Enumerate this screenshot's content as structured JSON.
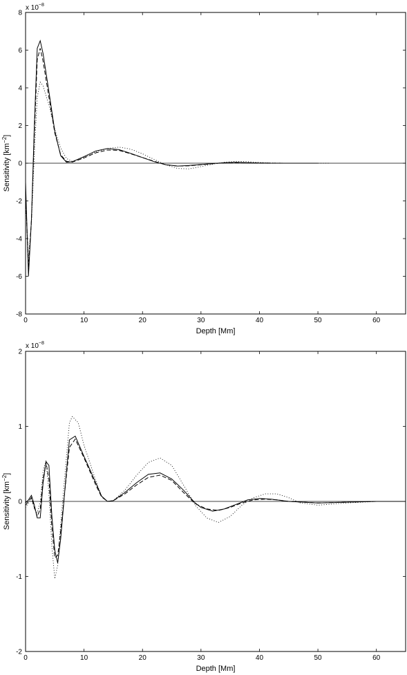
{
  "chart_data": [
    {
      "type": "line",
      "xlabel": "Depth [Mm]",
      "ylabel": "Sensitivity [km",
      "ylabel_sup": "−2",
      "ylabel_end": "]",
      "scale_base": "x 10",
      "scale_exp": "−8",
      "xlim": [
        0,
        65
      ],
      "ylim": [
        -8,
        8
      ],
      "xticks": [
        0,
        10,
        20,
        30,
        40,
        50,
        60
      ],
      "yticks": [
        -8,
        -6,
        -4,
        -2,
        0,
        2,
        4,
        6,
        8
      ],
      "zero_line": true,
      "grid": false,
      "series": [
        {
          "style": "solid",
          "points": [
            [
              0,
              -1
            ],
            [
              0.5,
              -6
            ],
            [
              1,
              -3
            ],
            [
              1.5,
              2
            ],
            [
              2,
              6.1
            ],
            [
              2.5,
              6.5
            ],
            [
              3,
              5.8
            ],
            [
              4,
              3.8
            ],
            [
              5,
              1.7
            ],
            [
              6,
              0.4
            ],
            [
              7,
              0.05
            ],
            [
              8,
              0.08
            ],
            [
              10,
              0.35
            ],
            [
              12,
              0.65
            ],
            [
              14,
              0.78
            ],
            [
              16,
              0.72
            ],
            [
              18,
              0.52
            ],
            [
              20,
              0.3
            ],
            [
              22,
              0.08
            ],
            [
              24,
              -0.08
            ],
            [
              26,
              -0.15
            ],
            [
              28,
              -0.12
            ],
            [
              30,
              -0.07
            ],
            [
              32,
              -0.02
            ],
            [
              34,
              0.03
            ],
            [
              36,
              0.05
            ],
            [
              38,
              0.03
            ],
            [
              40,
              0.01
            ],
            [
              42,
              0
            ],
            [
              45,
              0
            ],
            [
              50,
              0
            ]
          ]
        },
        {
          "style": "dashed",
          "points": [
            [
              0,
              -1.5
            ],
            [
              0.5,
              -5.5
            ],
            [
              1,
              -3
            ],
            [
              1.5,
              1.5
            ],
            [
              2,
              5.5
            ],
            [
              2.5,
              6.1
            ],
            [
              3,
              5.4
            ],
            [
              4,
              3.5
            ],
            [
              5,
              1.6
            ],
            [
              6,
              0.45
            ],
            [
              7,
              0.1
            ],
            [
              8,
              0.06
            ],
            [
              10,
              0.28
            ],
            [
              12,
              0.55
            ],
            [
              14,
              0.7
            ],
            [
              16,
              0.68
            ],
            [
              18,
              0.5
            ],
            [
              20,
              0.3
            ],
            [
              22,
              0.1
            ],
            [
              24,
              -0.08
            ],
            [
              26,
              -0.15
            ],
            [
              28,
              -0.14
            ],
            [
              30,
              -0.08
            ],
            [
              32,
              -0.03
            ],
            [
              34,
              0.02
            ],
            [
              36,
              0.04
            ],
            [
              38,
              0.03
            ],
            [
              40,
              0.01
            ],
            [
              45,
              0
            ],
            [
              50,
              0
            ]
          ]
        },
        {
          "style": "dotted",
          "points": [
            [
              0,
              -2
            ],
            [
              0.5,
              -5
            ],
            [
              1,
              -3.2
            ],
            [
              1.5,
              0.5
            ],
            [
              2,
              3.5
            ],
            [
              2.5,
              4.3
            ],
            [
              3,
              4.1
            ],
            [
              4,
              3.1
            ],
            [
              5,
              1.8
            ],
            [
              6,
              0.8
            ],
            [
              7,
              0.25
            ],
            [
              8,
              0.1
            ],
            [
              10,
              0.3
            ],
            [
              12,
              0.6
            ],
            [
              14,
              0.78
            ],
            [
              16,
              0.85
            ],
            [
              18,
              0.75
            ],
            [
              20,
              0.5
            ],
            [
              22,
              0.2
            ],
            [
              24,
              -0.08
            ],
            [
              26,
              -0.28
            ],
            [
              28,
              -0.3
            ],
            [
              30,
              -0.18
            ],
            [
              32,
              -0.05
            ],
            [
              34,
              0.05
            ],
            [
              36,
              0.1
            ],
            [
              38,
              0.08
            ],
            [
              40,
              0.04
            ],
            [
              42,
              0.01
            ],
            [
              45,
              0
            ],
            [
              52,
              0
            ]
          ]
        }
      ]
    },
    {
      "type": "line",
      "xlabel": "Depth [Mm]",
      "ylabel": "Sensitivity [km",
      "ylabel_sup": "−2",
      "ylabel_end": "]",
      "scale_base": "x 10",
      "scale_exp": "−8",
      "xlim": [
        0,
        65
      ],
      "ylim": [
        -2,
        2
      ],
      "xticks": [
        0,
        10,
        20,
        30,
        40,
        50,
        60
      ],
      "yticks": [
        -2,
        -1,
        0,
        1,
        2
      ],
      "zero_line": true,
      "grid": false,
      "series": [
        {
          "style": "solid",
          "points": [
            [
              0,
              -0.02
            ],
            [
              0.5,
              0.02
            ],
            [
              1,
              0.08
            ],
            [
              1.5,
              -0.05
            ],
            [
              2,
              -0.22
            ],
            [
              2.5,
              -0.22
            ],
            [
              3,
              0.25
            ],
            [
              3.5,
              0.53
            ],
            [
              4,
              0.48
            ],
            [
              4.5,
              -0.2
            ],
            [
              5,
              -0.65
            ],
            [
              5.5,
              -0.82
            ],
            [
              6,
              -0.5
            ],
            [
              7,
              0.4
            ],
            [
              7.5,
              0.82
            ],
            [
              8.5,
              0.87
            ],
            [
              10,
              0.6
            ],
            [
              12,
              0.25
            ],
            [
              13,
              0.07
            ],
            [
              14,
              0
            ],
            [
              15,
              0.01
            ],
            [
              17,
              0.12
            ],
            [
              19,
              0.25
            ],
            [
              21,
              0.36
            ],
            [
              23,
              0.38
            ],
            [
              25,
              0.3
            ],
            [
              27,
              0.15
            ],
            [
              29,
              -0.02
            ],
            [
              30,
              -0.08
            ],
            [
              32,
              -0.13
            ],
            [
              34,
              -0.1
            ],
            [
              36,
              -0.04
            ],
            [
              38,
              0.02
            ],
            [
              40,
              0.04
            ],
            [
              42,
              0.03
            ],
            [
              45,
              0
            ],
            [
              50,
              -0.02
            ],
            [
              55,
              -0.01
            ],
            [
              60,
              0
            ],
            [
              65,
              0
            ]
          ]
        },
        {
          "style": "dashed",
          "points": [
            [
              0,
              -0.05
            ],
            [
              0.5,
              0
            ],
            [
              1,
              0.05
            ],
            [
              1.5,
              -0.08
            ],
            [
              2,
              -0.2
            ],
            [
              2.5,
              -0.1
            ],
            [
              3,
              0.3
            ],
            [
              3.5,
              0.52
            ],
            [
              4,
              0.3
            ],
            [
              4.5,
              -0.35
            ],
            [
              5,
              -0.75
            ],
            [
              5.5,
              -0.72
            ],
            [
              6,
              -0.4
            ],
            [
              7,
              0.35
            ],
            [
              7.5,
              0.72
            ],
            [
              8.5,
              0.83
            ],
            [
              10,
              0.58
            ],
            [
              12,
              0.22
            ],
            [
              13,
              0.06
            ],
            [
              14,
              0
            ],
            [
              15,
              0.01
            ],
            [
              17,
              0.1
            ],
            [
              19,
              0.22
            ],
            [
              21,
              0.32
            ],
            [
              23,
              0.35
            ],
            [
              25,
              0.28
            ],
            [
              27,
              0.12
            ],
            [
              29,
              -0.03
            ],
            [
              31,
              -0.1
            ],
            [
              33,
              -0.12
            ],
            [
              35,
              -0.08
            ],
            [
              37,
              -0.02
            ],
            [
              39,
              0.02
            ],
            [
              41,
              0.03
            ],
            [
              43,
              0.02
            ],
            [
              45,
              0
            ],
            [
              50,
              -0.02
            ],
            [
              55,
              -0.01
            ],
            [
              60,
              0
            ],
            [
              65,
              0
            ]
          ]
        },
        {
          "style": "dotted",
          "points": [
            [
              0,
              -0.08
            ],
            [
              0.5,
              -0.02
            ],
            [
              1,
              0.03
            ],
            [
              1.5,
              -0.1
            ],
            [
              2,
              -0.15
            ],
            [
              2.5,
              0
            ],
            [
              3,
              0.4
            ],
            [
              3.5,
              0.55
            ],
            [
              4,
              0.1
            ],
            [
              4.5,
              -0.6
            ],
            [
              5,
              -1.03
            ],
            [
              5.5,
              -0.85
            ],
            [
              6,
              -0.3
            ],
            [
              7,
              0.6
            ],
            [
              7.5,
              1.05
            ],
            [
              8,
              1.13
            ],
            [
              9,
              1.05
            ],
            [
              10,
              0.75
            ],
            [
              12,
              0.28
            ],
            [
              13,
              0.07
            ],
            [
              14,
              0
            ],
            [
              15,
              0.01
            ],
            [
              17,
              0.15
            ],
            [
              19,
              0.35
            ],
            [
              21,
              0.52
            ],
            [
              23,
              0.58
            ],
            [
              25,
              0.48
            ],
            [
              27,
              0.22
            ],
            [
              29,
              -0.05
            ],
            [
              31,
              -0.22
            ],
            [
              33,
              -0.28
            ],
            [
              35,
              -0.2
            ],
            [
              37,
              -0.05
            ],
            [
              39,
              0.05
            ],
            [
              41,
              0.1
            ],
            [
              43,
              0.1
            ],
            [
              45,
              0.05
            ],
            [
              47,
              -0.02
            ],
            [
              50,
              -0.05
            ],
            [
              55,
              -0.02
            ],
            [
              60,
              0
            ],
            [
              65,
              0
            ]
          ]
        }
      ]
    }
  ]
}
